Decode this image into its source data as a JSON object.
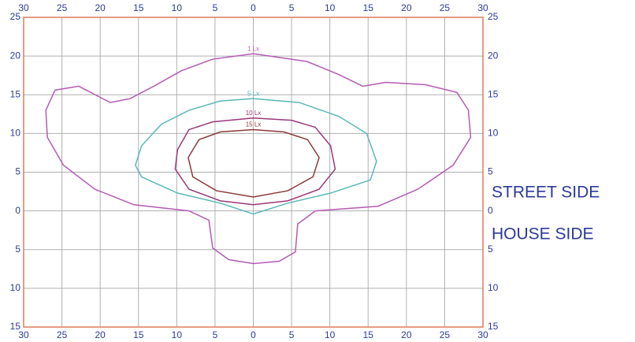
{
  "chart_data": {
    "type": "contour",
    "xlim": [
      -30,
      30
    ],
    "ylim": [
      -15,
      25
    ],
    "xticks": [
      {
        "value": -30,
        "label": "30"
      },
      {
        "value": -25,
        "label": "25"
      },
      {
        "value": -20,
        "label": "20"
      },
      {
        "value": -15,
        "label": "15"
      },
      {
        "value": -10,
        "label": "10"
      },
      {
        "value": -5,
        "label": "5"
      },
      0,
      5,
      10,
      15,
      20,
      25,
      30
    ],
    "yticks": [
      25,
      20,
      15,
      10,
      5,
      0,
      {
        "value": -5,
        "label": "5"
      },
      {
        "value": -10,
        "label": "10"
      },
      {
        "value": -15,
        "label": "15"
      }
    ],
    "grid": true,
    "frame_color": "#e07a5a",
    "grid_color": "#b0b0b0",
    "annotations": [
      "STREET SIDE",
      "HOUSE SIDE"
    ],
    "series": [
      {
        "name": "1 Lx",
        "color": "#b45cb4",
        "x": [
          0,
          -5.3,
          -9.4,
          -13,
          -16.1,
          -18.7,
          -22.8,
          -25.9,
          -27.1,
          -26.9,
          -24.8,
          -20.7,
          -15.6,
          -8.4,
          -5.8,
          -5.3,
          -3.2,
          0,
          3.4,
          5.5,
          5.8,
          8.1,
          16.3,
          21.5,
          26.1,
          28.4,
          28.1,
          26.6,
          22.5,
          17.3,
          14.3,
          11.2,
          7
        ],
        "y": [
          20.3,
          19.6,
          18.1,
          16.1,
          14.5,
          14,
          16.1,
          15.6,
          13,
          9.5,
          5.9,
          2.8,
          0.8,
          0,
          -1.2,
          -4.8,
          -6.3,
          -6.8,
          -6.5,
          -5.3,
          -1.7,
          0,
          0.6,
          2.8,
          5.9,
          9.5,
          13,
          15.3,
          16.3,
          16.6,
          16.1,
          17.6,
          19.3
        ]
      },
      {
        "name": "5 Lx",
        "color": "#5ab8b8",
        "x": [
          0,
          -4.3,
          -8.4,
          -12,
          -14.6,
          -15.4,
          -14.6,
          -9.9,
          -4.3,
          0,
          4.5,
          10.1,
          15.3,
          16.1,
          14.8,
          11.2,
          6
        ],
        "y": [
          14.5,
          14.2,
          13,
          11.2,
          8.4,
          5.9,
          4.4,
          2.3,
          1,
          -0.4,
          1,
          2.3,
          4,
          6.4,
          10,
          12.2,
          14
        ]
      },
      {
        "name": "10 Lx",
        "color": "#9a3a7a",
        "x": [
          0,
          -5.3,
          -8.4,
          -9.9,
          -10.2,
          -8.4,
          -4.3,
          0,
          4.5,
          8.6,
          10.7,
          10.1,
          8.1,
          5
        ],
        "y": [
          12,
          11.5,
          10.5,
          7.9,
          5.4,
          2.8,
          1.3,
          0.8,
          1.3,
          2.8,
          5.4,
          8.4,
          10.8,
          11.7
        ]
      },
      {
        "name": "15 Lx",
        "color": "#8a3a3a",
        "x": [
          0,
          -4.3,
          -7.1,
          -8.5,
          -7.9,
          -4.8,
          0,
          4.5,
          7.8,
          8.6,
          7.1,
          4
        ],
        "y": [
          10.5,
          10.2,
          9.2,
          6.9,
          4.4,
          2.6,
          1.8,
          2.6,
          4.4,
          6.9,
          9.2,
          10.2
        ]
      }
    ]
  }
}
